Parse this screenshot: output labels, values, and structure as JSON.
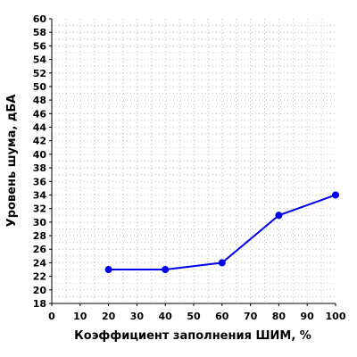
{
  "chart_data": {
    "type": "line",
    "title": "",
    "xlabel": "Коэффициент заполнения ШИМ, %",
    "ylabel": "Уровень шума, дБА",
    "xlim": [
      0,
      100
    ],
    "ylim": [
      18,
      60
    ],
    "x_ticks": [
      0,
      10,
      20,
      30,
      40,
      50,
      60,
      70,
      80,
      90,
      100
    ],
    "y_ticks": [
      18,
      20,
      22,
      24,
      26,
      28,
      30,
      32,
      34,
      36,
      38,
      40,
      42,
      44,
      46,
      48,
      50,
      52,
      54,
      56,
      58,
      60
    ],
    "grid": true,
    "series": [
      {
        "color": "#0000ee",
        "x": [
          20,
          40,
          60,
          80,
          100
        ],
        "y": [
          23,
          23,
          24,
          31,
          34
        ]
      }
    ]
  }
}
